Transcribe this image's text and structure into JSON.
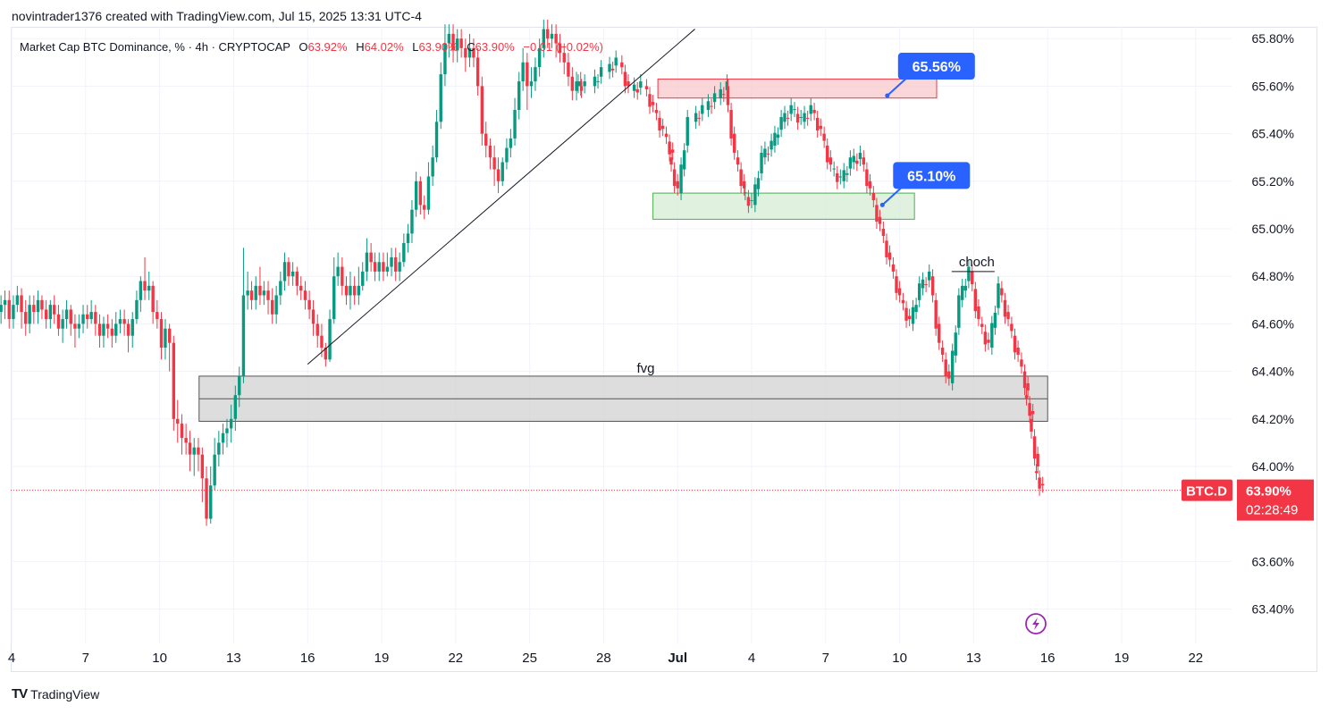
{
  "header": {
    "credit": "novintrader1376 created with TradingView.com, Jul 15, 2025 13:31 UTC-4"
  },
  "legend": {
    "symbol": "Market Cap BTC Dominance, % · 4h · CRYPTOCAP",
    "open_label": "O",
    "open": "63.92%",
    "high_label": "H",
    "high": "64.02%",
    "low_label": "L",
    "low": "63.90%",
    "close_label": "C",
    "close": "63.90%",
    "change": "−0.01 (−0.02%)"
  },
  "footer": {
    "brand": "TradingView",
    "logo": "tradingview-logo-icon"
  },
  "price_tag": {
    "ticker": "BTC.D",
    "price": "63.90%",
    "countdown": "02:28:49",
    "color": "#f23645"
  },
  "colors": {
    "up": "#089981",
    "down": "#f23645",
    "grid": "#f0f3fa"
  },
  "chart_data": {
    "type": "candlestick",
    "y_axis": {
      "min": 63.3,
      "max": 65.85,
      "ticks": [
        "65.80%",
        "65.60%",
        "65.40%",
        "65.20%",
        "65.00%",
        "64.80%",
        "64.60%",
        "64.40%",
        "64.20%",
        "64.00%",
        "63.60%",
        "63.40%"
      ],
      "tick_values": [
        65.8,
        65.6,
        65.4,
        65.2,
        65.0,
        64.8,
        64.6,
        64.4,
        64.2,
        64.0,
        63.6,
        63.4
      ]
    },
    "x_axis": {
      "ticks": [
        "4",
        "7",
        "10",
        "13",
        "16",
        "19",
        "22",
        "25",
        "28",
        "Jul",
        "4",
        "7",
        "10",
        "13",
        "16",
        "19",
        "22"
      ],
      "day_offsets": [
        0,
        3,
        6,
        9,
        12,
        15,
        18,
        21,
        24,
        27,
        30,
        33,
        36,
        39,
        42,
        45,
        48
      ]
    },
    "last_price": 63.9,
    "zones": [
      {
        "name": "supply-zone",
        "y_top": 65.63,
        "y_bottom": 65.55,
        "d_start": 26.2,
        "d_end": 37.5,
        "fill": "#f8c8cc",
        "stroke": "#f23645"
      },
      {
        "name": "demand-zone",
        "y_top": 65.15,
        "y_bottom": 65.04,
        "d_start": 26.0,
        "d_end": 36.6,
        "fill": "#d5ecd5",
        "stroke": "#4caf50"
      },
      {
        "name": "fvg-zone",
        "y_top": 64.38,
        "y_bottom": 64.19,
        "d_start": 7.6,
        "d_end": 42.0,
        "fill": "#d1d1d1",
        "stroke": "#555555",
        "label": "fvg"
      }
    ],
    "annotations": [
      {
        "name": "callout-65-56",
        "text": "65.56%",
        "value": 65.56,
        "d": 35.5
      },
      {
        "name": "callout-65-10",
        "text": "65.10%",
        "value": 65.1,
        "d": 35.3
      },
      {
        "name": "choch-label",
        "text": "choch",
        "value": 64.85,
        "d": 38.4
      }
    ],
    "trendline": {
      "from": {
        "d": 12.0,
        "y": 64.43
      },
      "to": {
        "d": 27.7,
        "y": 65.84
      }
    },
    "candles": [
      [
        -2.93,
        64.05,
        64.0,
        64.05,
        63.98
      ],
      [
        -2.77,
        64.0,
        64.05,
        64.05,
        63.95
      ],
      [
        -2.6,
        64.05,
        63.95,
        64.08,
        63.9
      ],
      [
        -2.43,
        63.95,
        64.12,
        64.14,
        63.9
      ],
      [
        -2.27,
        64.12,
        64.18,
        64.2,
        64.08
      ],
      [
        -2.1,
        64.18,
        64.15,
        64.22,
        64.1
      ],
      [
        -1.93,
        64.15,
        64.2,
        64.25,
        64.12
      ],
      [
        -1.77,
        64.2,
        64.22,
        64.28,
        64.16
      ],
      [
        -1.6,
        64.22,
        64.18,
        64.26,
        64.12
      ],
      [
        -1.43,
        64.18,
        64.25,
        64.3,
        64.15
      ],
      [
        -1.27,
        64.25,
        64.28,
        64.32,
        64.22
      ],
      [
        -1.1,
        64.28,
        64.6,
        64.65,
        64.26
      ],
      [
        -0.93,
        64.6,
        64.55,
        64.65,
        64.5
      ],
      [
        -0.77,
        64.55,
        64.62,
        64.68,
        64.5
      ],
      [
        -0.6,
        64.62,
        64.65,
        64.68,
        64.55
      ],
      [
        -0.43,
        64.65,
        64.68,
        64.72,
        64.6
      ],
      [
        -0.27,
        64.68,
        64.7,
        64.74,
        64.62
      ],
      [
        -0.1,
        64.7,
        64.62,
        64.74,
        64.58
      ],
      [
        0.07,
        64.62,
        64.68,
        64.72,
        64.58
      ],
      [
        0.23,
        64.68,
        64.72,
        64.76,
        64.65
      ],
      [
        0.4,
        64.72,
        64.65,
        64.75,
        64.58
      ],
      [
        0.57,
        64.65,
        64.6,
        64.7,
        64.55
      ],
      [
        0.73,
        64.6,
        64.68,
        64.72,
        64.56
      ],
      [
        0.9,
        64.68,
        64.65,
        64.72,
        64.6
      ],
      [
        1.07,
        64.65,
        64.7,
        64.74,
        64.6
      ],
      [
        1.23,
        64.7,
        64.66,
        64.72,
        64.62
      ],
      [
        1.4,
        64.66,
        64.62,
        64.7,
        64.58
      ],
      [
        1.57,
        64.62,
        64.68,
        64.7,
        64.58
      ],
      [
        1.73,
        64.68,
        64.64,
        64.72,
        64.6
      ],
      [
        1.9,
        64.64,
        64.58,
        64.68,
        64.55
      ],
      [
        2.07,
        64.58,
        64.62,
        64.66,
        64.52
      ],
      [
        2.23,
        64.62,
        64.66,
        64.7,
        64.58
      ],
      [
        2.4,
        64.66,
        64.6,
        64.68,
        64.55
      ],
      [
        2.57,
        64.6,
        64.58,
        64.64,
        64.5
      ],
      [
        2.73,
        64.58,
        64.6,
        64.64,
        64.54
      ],
      [
        2.9,
        64.6,
        64.64,
        64.68,
        64.56
      ],
      [
        3.07,
        64.64,
        64.62,
        64.68,
        64.58
      ],
      [
        3.23,
        64.62,
        64.65,
        64.7,
        64.6
      ],
      [
        3.4,
        64.65,
        64.6,
        64.68,
        64.55
      ],
      [
        3.57,
        64.6,
        64.55,
        64.64,
        64.5
      ],
      [
        3.73,
        64.55,
        64.6,
        64.63,
        64.5
      ],
      [
        3.9,
        64.6,
        64.58,
        64.64,
        64.54
      ],
      [
        4.07,
        64.58,
        64.55,
        64.62,
        64.5
      ],
      [
        4.23,
        64.55,
        64.6,
        64.65,
        64.52
      ],
      [
        4.4,
        64.6,
        64.62,
        64.66,
        64.56
      ],
      [
        4.57,
        64.62,
        64.6,
        64.66,
        64.55
      ],
      [
        4.73,
        64.6,
        64.55,
        64.62,
        64.48
      ],
      [
        4.9,
        64.55,
        64.62,
        64.65,
        64.5
      ],
      [
        5.07,
        64.62,
        64.7,
        64.74,
        64.6
      ],
      [
        5.23,
        64.7,
        64.78,
        64.8,
        64.65
      ],
      [
        5.4,
        64.78,
        64.74,
        64.88,
        64.7
      ],
      [
        5.57,
        64.74,
        64.76,
        64.82,
        64.7
      ],
      [
        5.73,
        64.76,
        64.65,
        64.78,
        64.6
      ],
      [
        5.9,
        64.65,
        64.62,
        64.7,
        64.58
      ],
      [
        6.07,
        64.62,
        64.5,
        64.65,
        64.45
      ],
      [
        6.23,
        64.5,
        64.58,
        64.62,
        64.45
      ],
      [
        6.4,
        64.58,
        64.52,
        64.6,
        64.4
      ],
      [
        6.57,
        64.52,
        64.2,
        64.55,
        64.15
      ],
      [
        6.73,
        64.2,
        64.18,
        64.28,
        64.1
      ],
      [
        6.9,
        64.18,
        64.12,
        64.22,
        64.05
      ],
      [
        7.07,
        64.12,
        64.1,
        64.18,
        64.05
      ],
      [
        7.23,
        64.1,
        64.05,
        64.15,
        63.98
      ],
      [
        7.4,
        64.05,
        64.08,
        64.12,
        63.96
      ],
      [
        7.57,
        64.08,
        64.05,
        64.12,
        63.98
      ],
      [
        7.73,
        64.05,
        63.95,
        64.08,
        63.85
      ],
      [
        7.9,
        63.95,
        63.78,
        64.0,
        63.75
      ],
      [
        8.07,
        63.78,
        63.92,
        64.0,
        63.76
      ],
      [
        8.23,
        63.92,
        64.05,
        64.12,
        63.9
      ],
      [
        8.4,
        64.05,
        64.1,
        64.15,
        64.0
      ],
      [
        8.57,
        64.1,
        64.14,
        64.18,
        64.05
      ],
      [
        8.73,
        64.14,
        64.16,
        64.2,
        64.08
      ],
      [
        8.9,
        64.16,
        64.2,
        64.26,
        64.1
      ],
      [
        9.07,
        64.2,
        64.3,
        64.34,
        64.15
      ],
      [
        9.23,
        64.3,
        64.38,
        64.42,
        64.25
      ],
      [
        9.4,
        64.38,
        64.72,
        64.92,
        64.35
      ],
      [
        9.57,
        64.72,
        64.74,
        64.82,
        64.66
      ],
      [
        9.73,
        64.74,
        64.7,
        64.78,
        64.66
      ],
      [
        9.9,
        64.7,
        64.76,
        64.8,
        64.66
      ],
      [
        10.07,
        64.76,
        64.72,
        64.84,
        64.68
      ],
      [
        10.23,
        64.72,
        64.74,
        64.78,
        64.68
      ],
      [
        10.4,
        64.74,
        64.7,
        64.78,
        64.64
      ],
      [
        10.57,
        64.7,
        64.64,
        64.75,
        64.6
      ],
      [
        10.73,
        64.64,
        64.72,
        64.76,
        64.6
      ],
      [
        10.9,
        64.72,
        64.78,
        64.82,
        64.68
      ],
      [
        11.07,
        64.78,
        64.86,
        64.9,
        64.74
      ],
      [
        11.23,
        64.86,
        64.8,
        64.88,
        64.76
      ],
      [
        11.4,
        64.8,
        64.82,
        64.86,
        64.76
      ],
      [
        11.57,
        64.82,
        64.76,
        64.84,
        64.72
      ],
      [
        11.73,
        64.76,
        64.74,
        64.8,
        64.7
      ],
      [
        11.9,
        64.74,
        64.7,
        64.78,
        64.66
      ],
      [
        12.07,
        64.7,
        64.66,
        64.74,
        64.62
      ],
      [
        12.23,
        64.66,
        64.6,
        64.7,
        64.55
      ],
      [
        12.4,
        64.6,
        64.55,
        64.64,
        64.5
      ],
      [
        12.57,
        64.55,
        64.5,
        64.6,
        64.46
      ],
      [
        12.73,
        64.5,
        64.45,
        64.52,
        64.42
      ],
      [
        12.9,
        64.45,
        64.62,
        64.66,
        64.44
      ],
      [
        13.07,
        64.62,
        64.8,
        64.88,
        64.6
      ],
      [
        13.23,
        64.8,
        64.84,
        64.9,
        64.76
      ],
      [
        13.4,
        64.84,
        64.76,
        64.88,
        64.72
      ],
      [
        13.57,
        64.76,
        64.72,
        64.8,
        64.68
      ],
      [
        13.73,
        64.72,
        64.76,
        64.82,
        64.66
      ],
      [
        13.9,
        64.76,
        64.72,
        64.8,
        64.68
      ],
      [
        14.07,
        64.72,
        64.76,
        64.84,
        64.68
      ],
      [
        14.23,
        64.76,
        64.82,
        64.86,
        64.74
      ],
      [
        14.4,
        64.82,
        64.9,
        64.96,
        64.78
      ],
      [
        14.57,
        64.9,
        64.86,
        64.94,
        64.82
      ],
      [
        14.73,
        64.86,
        64.82,
        64.9,
        64.78
      ],
      [
        14.9,
        64.82,
        64.86,
        64.9,
        64.78
      ],
      [
        15.07,
        64.86,
        64.82,
        64.9,
        64.78
      ],
      [
        15.23,
        64.82,
        64.84,
        64.9,
        64.8
      ],
      [
        15.4,
        64.84,
        64.88,
        64.92,
        64.8
      ],
      [
        15.57,
        64.88,
        64.82,
        64.92,
        64.78
      ],
      [
        15.73,
        64.82,
        64.86,
        64.9,
        64.78
      ],
      [
        15.9,
        64.86,
        64.94,
        64.98,
        64.84
      ],
      [
        16.07,
        64.94,
        64.98,
        65.02,
        64.9
      ],
      [
        16.23,
        64.98,
        65.08,
        65.12,
        64.94
      ],
      [
        16.4,
        65.08,
        65.2,
        65.24,
        65.05
      ],
      [
        16.57,
        65.2,
        65.1,
        65.22,
        65.06
      ],
      [
        16.73,
        65.1,
        65.08,
        65.14,
        65.04
      ],
      [
        16.9,
        65.08,
        65.22,
        65.28,
        65.06
      ],
      [
        17.07,
        65.22,
        65.3,
        65.35,
        65.18
      ],
      [
        17.23,
        65.3,
        65.45,
        65.5,
        65.28
      ],
      [
        17.4,
        65.45,
        65.65,
        65.7,
        65.42
      ],
      [
        17.57,
        65.65,
        65.78,
        65.86,
        65.6
      ],
      [
        17.73,
        65.78,
        65.82,
        65.86,
        65.72
      ],
      [
        17.9,
        65.82,
        65.75,
        65.86,
        65.7
      ],
      [
        18.07,
        65.75,
        65.8,
        65.84,
        65.7
      ],
      [
        18.23,
        65.8,
        65.76,
        65.84,
        65.72
      ],
      [
        18.4,
        65.76,
        65.72,
        65.8,
        65.66
      ],
      [
        18.57,
        65.72,
        65.76,
        65.82,
        65.68
      ],
      [
        18.73,
        65.76,
        65.72,
        65.8,
        65.68
      ],
      [
        18.9,
        65.72,
        65.6,
        65.76,
        65.56
      ],
      [
        19.07,
        65.6,
        65.4,
        65.64,
        65.35
      ],
      [
        19.23,
        65.4,
        65.35,
        65.45,
        65.3
      ],
      [
        19.4,
        65.35,
        65.3,
        65.38,
        65.25
      ],
      [
        19.57,
        65.3,
        65.25,
        65.35,
        65.18
      ],
      [
        19.73,
        65.25,
        65.2,
        65.3,
        65.15
      ],
      [
        19.9,
        65.2,
        65.28,
        65.3,
        65.18
      ],
      [
        20.07,
        65.28,
        65.34,
        65.38,
        65.25
      ],
      [
        20.23,
        65.34,
        65.38,
        65.42,
        65.3
      ],
      [
        20.4,
        65.38,
        65.5,
        65.55,
        65.35
      ],
      [
        20.57,
        65.5,
        65.62,
        65.66,
        65.46
      ],
      [
        20.73,
        65.62,
        65.7,
        65.76,
        65.58
      ],
      [
        20.9,
        65.7,
        65.6,
        65.74,
        65.5
      ],
      [
        21.07,
        65.6,
        65.62,
        65.68,
        65.55
      ],
      [
        21.23,
        65.62,
        65.68,
        65.72,
        65.58
      ],
      [
        21.4,
        65.68,
        65.76,
        65.8,
        65.64
      ],
      [
        21.57,
        65.76,
        65.84,
        65.88,
        65.72
      ],
      [
        21.73,
        65.84,
        65.8,
        65.88,
        65.76
      ],
      [
        21.9,
        65.8,
        65.82,
        65.86,
        65.76
      ],
      [
        22.07,
        65.82,
        65.78,
        65.86,
        65.72
      ],
      [
        22.23,
        65.78,
        65.74,
        65.82,
        65.7
      ],
      [
        22.4,
        65.74,
        65.7,
        65.78,
        65.65
      ],
      [
        22.57,
        65.7,
        65.64,
        65.74,
        65.6
      ],
      [
        22.73,
        65.64,
        65.58,
        65.68,
        65.54
      ],
      [
        22.9,
        65.58,
        65.62,
        65.66,
        65.54
      ],
      [
        23.07,
        65.62,
        65.6,
        65.66,
        65.56
      ]
    ]
  }
}
